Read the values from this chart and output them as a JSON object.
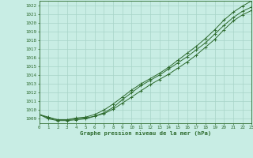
{
  "x": [
    0,
    1,
    2,
    3,
    4,
    5,
    6,
    7,
    8,
    9,
    10,
    11,
    12,
    13,
    14,
    15,
    16,
    17,
    18,
    19,
    20,
    21,
    22,
    23
  ],
  "line1": [
    1009.5,
    1009.2,
    1008.9,
    1008.9,
    1009.0,
    1009.1,
    1009.3,
    1009.6,
    1010.1,
    1010.8,
    1011.5,
    1012.2,
    1012.9,
    1013.5,
    1014.1,
    1014.8,
    1015.5,
    1016.3,
    1017.2,
    1018.1,
    1019.2,
    1020.2,
    1020.9,
    1021.4
  ],
  "line2": [
    1009.5,
    1009.0,
    1008.8,
    1008.8,
    1008.9,
    1009.0,
    1009.3,
    1009.7,
    1010.3,
    1011.2,
    1012.0,
    1012.8,
    1013.4,
    1014.0,
    1014.7,
    1015.4,
    1016.1,
    1016.9,
    1017.7,
    1018.7,
    1019.7,
    1020.6,
    1021.3,
    1021.8
  ],
  "line3": [
    1009.5,
    1009.1,
    1008.9,
    1008.9,
    1009.1,
    1009.2,
    1009.5,
    1010.0,
    1010.7,
    1011.5,
    1012.3,
    1013.0,
    1013.6,
    1014.2,
    1014.9,
    1015.7,
    1016.5,
    1017.3,
    1018.2,
    1019.2,
    1020.3,
    1021.2,
    1021.9,
    1022.5
  ],
  "line_color": "#2d6a2d",
  "bg_color": "#c8ede4",
  "grid_color": "#a8d4c8",
  "title": "Graphe pression niveau de la mer (hPa)",
  "ylim_min": 1008.5,
  "ylim_max": 1022.5,
  "xlim_min": 0,
  "xlim_max": 23,
  "yticks": [
    1009,
    1010,
    1011,
    1012,
    1013,
    1014,
    1015,
    1016,
    1017,
    1018,
    1019,
    1020,
    1021,
    1022
  ],
  "xticks": [
    0,
    1,
    2,
    3,
    4,
    5,
    6,
    7,
    8,
    9,
    10,
    11,
    12,
    13,
    14,
    15,
    16,
    17,
    18,
    19,
    20,
    21,
    22,
    23
  ]
}
